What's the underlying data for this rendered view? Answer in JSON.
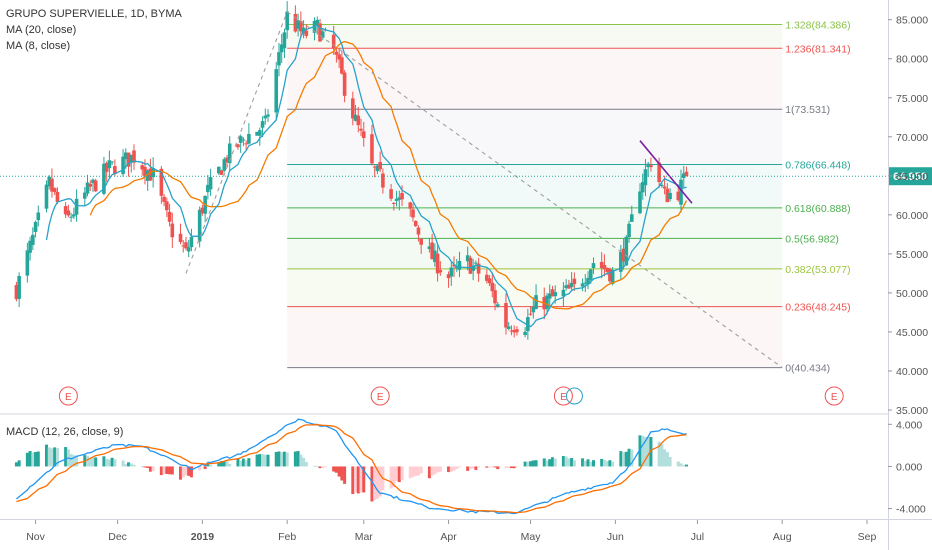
{
  "header": {
    "symbol": "GRUPO SUPERVIELLE, 1D, BYMA",
    "ma20": "MA (20, close)",
    "ma8": "MA (8, close)"
  },
  "macd_label": "MACD (12, 26, close, 9)",
  "colors": {
    "up": "#26a69a",
    "down": "#ef5350",
    "ma20": "#f57c00",
    "ma8": "#26a3c9",
    "last_price": "#26a69a",
    "trend": "#7b1fa2",
    "macd_line": "#2196f3",
    "signal_line": "#ff6d00"
  },
  "chart_data": [
    {
      "type": "candlestick",
      "title": "GRUPO SUPERVIELLE, 1D, BYMA",
      "ylim": [
        35,
        86.5
      ],
      "y_ticks": [
        "85.000",
        "80.000",
        "75.000",
        "70.000",
        "65.000",
        "60.000",
        "55.000",
        "50.000",
        "45.000",
        "40.000",
        "35.000"
      ],
      "x_ticks": [
        "Nov",
        "Dec",
        "2019",
        "Feb",
        "Mar",
        "Apr",
        "May",
        "Jun",
        "Jul",
        "Aug",
        "Sep"
      ],
      "last_price": 64.95,
      "last_price_label": "64.950",
      "close_anchors": [
        {
          "date": "2018-10-25",
          "close": 50.5
        },
        {
          "date": "2018-11-01",
          "close": 58.0
        },
        {
          "date": "2018-11-06",
          "close": 64.0
        },
        {
          "date": "2018-11-12",
          "close": 59.0
        },
        {
          "date": "2018-11-20",
          "close": 63.0
        },
        {
          "date": "2018-11-28",
          "close": 66.0
        },
        {
          "date": "2018-12-07",
          "close": 67.5
        },
        {
          "date": "2018-12-14",
          "close": 65.0
        },
        {
          "date": "2018-12-20",
          "close": 58.5
        },
        {
          "date": "2018-12-26",
          "close": 55.0
        },
        {
          "date": "2019-01-03",
          "close": 63.0
        },
        {
          "date": "2019-01-10",
          "close": 67.5
        },
        {
          "date": "2019-01-17",
          "close": 70.0
        },
        {
          "date": "2019-01-24",
          "close": 71.5
        },
        {
          "date": "2019-02-01",
          "close": 85.5
        },
        {
          "date": "2019-02-07",
          "close": 83.0
        },
        {
          "date": "2019-02-12",
          "close": 84.0
        },
        {
          "date": "2019-02-18",
          "close": 81.0
        },
        {
          "date": "2019-02-25",
          "close": 73.0
        },
        {
          "date": "2019-03-04",
          "close": 66.0
        },
        {
          "date": "2019-03-11",
          "close": 63.0
        },
        {
          "date": "2019-03-18",
          "close": 60.0
        },
        {
          "date": "2019-03-25",
          "close": 55.0
        },
        {
          "date": "2019-04-01",
          "close": 52.0
        },
        {
          "date": "2019-04-08",
          "close": 54.0
        },
        {
          "date": "2019-04-15",
          "close": 51.5
        },
        {
          "date": "2019-04-22",
          "close": 46.0
        },
        {
          "date": "2019-04-29",
          "close": 46.0
        },
        {
          "date": "2019-05-03",
          "close": 48.5
        },
        {
          "date": "2019-05-10",
          "close": 49.5
        },
        {
          "date": "2019-05-17",
          "close": 50.5
        },
        {
          "date": "2019-05-24",
          "close": 54.0
        },
        {
          "date": "2019-05-31",
          "close": 52.5
        },
        {
          "date": "2019-06-05",
          "close": 56.0
        },
        {
          "date": "2019-06-10",
          "close": 64.0
        },
        {
          "date": "2019-06-14",
          "close": 67.0
        },
        {
          "date": "2019-06-19",
          "close": 62.5
        },
        {
          "date": "2019-06-24",
          "close": 63.0
        },
        {
          "date": "2019-06-27",
          "close": 64.95
        }
      ],
      "fib_levels": [
        {
          "label": "1.328(84.386)",
          "value": 84.386,
          "color": "#8bc34a"
        },
        {
          "label": "1.236(81.341)",
          "value": 81.341,
          "color": "#ef5350"
        },
        {
          "label": "1(73.531)",
          "value": 73.531,
          "color": "#787b86"
        },
        {
          "label": "0.786(66.448)",
          "value": 66.448,
          "color": "#26a69a"
        },
        {
          "label": "0.618(60.888)",
          "value": 60.888,
          "color": "#4caf50"
        },
        {
          "label": "0.5(56.982)",
          "value": 56.982,
          "color": "#4caf50"
        },
        {
          "label": "0.382(53.077)",
          "value": 53.077,
          "color": "#9bc53d"
        },
        {
          "label": "0.236(48.245)",
          "value": 48.245,
          "color": "#ef5350"
        },
        {
          "label": "0(40.434)",
          "value": 40.434,
          "color": "#787b86"
        }
      ],
      "fib_range": {
        "start": "2019-02-01",
        "end": "2019-08-01"
      },
      "trendline": {
        "start": {
          "date": "2019-02-01",
          "value": 86.0
        },
        "end": {
          "date": "2019-08-01",
          "value": 40.434
        }
      },
      "wedge_line": {
        "start": {
          "date": "2018-12-26",
          "value": 52.5
        },
        "end": {
          "date": "2019-02-01",
          "value": 86.0
        }
      },
      "purple_line": {
        "start": {
          "date": "2019-06-10",
          "value": 69.5
        },
        "end": {
          "date": "2019-06-29",
          "value": 61.5
        }
      },
      "earnings_markers": [
        {
          "date": "2018-11-13",
          "label": "E"
        },
        {
          "date": "2019-03-07",
          "label": "E"
        },
        {
          "date": "2019-05-13",
          "label": "E"
        },
        {
          "date": "2019-08-20",
          "label": "E"
        }
      ]
    },
    {
      "type": "macd",
      "title": "MACD (12, 26, close, 9)",
      "ylim": [
        -4.8,
        4.6
      ],
      "y_ticks": [
        "4.000",
        "0.000",
        "-4.000"
      ],
      "macd_anchors": [
        {
          "date": "2018-10-25",
          "value": -3.0
        },
        {
          "date": "2018-11-10",
          "value": 0.5
        },
        {
          "date": "2018-11-30",
          "value": 2.0
        },
        {
          "date": "2018-12-10",
          "value": 1.9
        },
        {
          "date": "2018-12-28",
          "value": -0.2
        },
        {
          "date": "2019-01-15",
          "value": 1.2
        },
        {
          "date": "2019-02-05",
          "value": 4.5
        },
        {
          "date": "2019-02-18",
          "value": 3.6
        },
        {
          "date": "2019-03-07",
          "value": -2.5
        },
        {
          "date": "2019-03-25",
          "value": -3.9
        },
        {
          "date": "2019-04-10",
          "value": -4.3
        },
        {
          "date": "2019-04-26",
          "value": -4.4
        },
        {
          "date": "2019-05-15",
          "value": -2.5
        },
        {
          "date": "2019-05-31",
          "value": -1.5
        },
        {
          "date": "2019-06-07",
          "value": 0.3
        },
        {
          "date": "2019-06-14",
          "value": 3.2
        },
        {
          "date": "2019-06-20",
          "value": 3.6
        },
        {
          "date": "2019-06-27",
          "value": 3.1
        }
      ]
    }
  ]
}
